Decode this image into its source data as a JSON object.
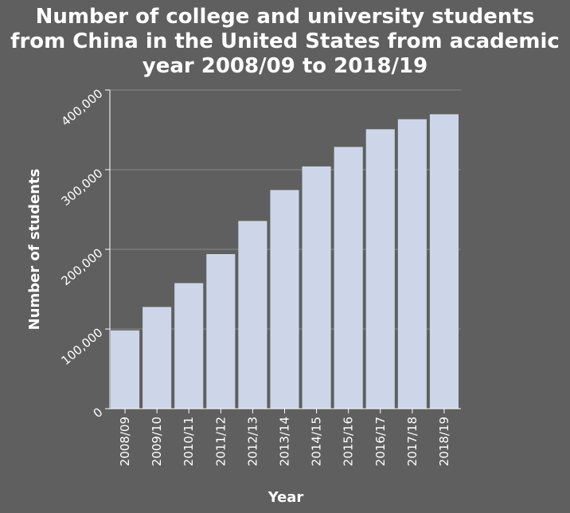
{
  "chart_data": {
    "type": "bar",
    "title_lines": [
      "Number of college and university students",
      "from China in the United States from academic",
      "year 2008/09 to 2018/19"
    ],
    "xlabel": "Year",
    "ylabel": "Number of students",
    "categories": [
      "2008/09",
      "2009/10",
      "2010/11",
      "2011/12",
      "2012/13",
      "2013/14",
      "2014/15",
      "2015/16",
      "2016/17",
      "2017/18",
      "2018/19"
    ],
    "values": [
      98235,
      127628,
      157558,
      194029,
      235597,
      274439,
      304040,
      328547,
      350755,
      363341,
      369548
    ],
    "ylim": [
      0,
      400000
    ],
    "yticks": [
      0,
      100000,
      200000,
      300000,
      400000
    ],
    "ytick_labels": [
      "0",
      "100,000",
      "200,000",
      "300,000",
      "400,000"
    ],
    "grid": true,
    "colors": {
      "background": "#5f5f5f",
      "bar": "#cdd6e8",
      "grid": "#8a8a8a",
      "axis": "#ffffff",
      "text": "#ffffff"
    }
  }
}
